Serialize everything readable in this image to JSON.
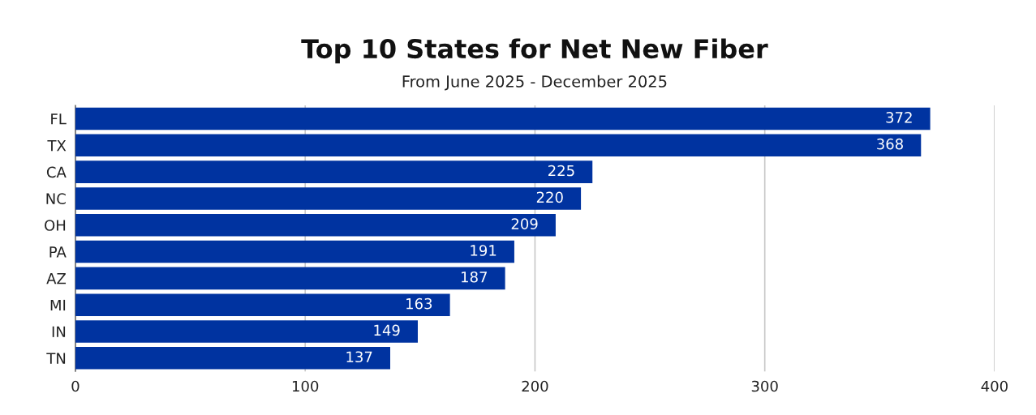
{
  "chart_data": {
    "type": "bar",
    "orientation": "horizontal",
    "title": "Top 10 States for Net New Fiber",
    "subtitle": "From June 2025 - December 2025",
    "categories": [
      "FL",
      "TX",
      "CA",
      "NC",
      "OH",
      "PA",
      "AZ",
      "MI",
      "IN",
      "TN"
    ],
    "values": [
      372,
      368,
      225,
      220,
      209,
      191,
      187,
      163,
      149,
      137
    ],
    "color": "#0033a0",
    "xlim": [
      0,
      400
    ],
    "xticks": [
      0,
      100,
      200,
      300,
      400
    ],
    "grid": "x",
    "data_labels": true
  }
}
